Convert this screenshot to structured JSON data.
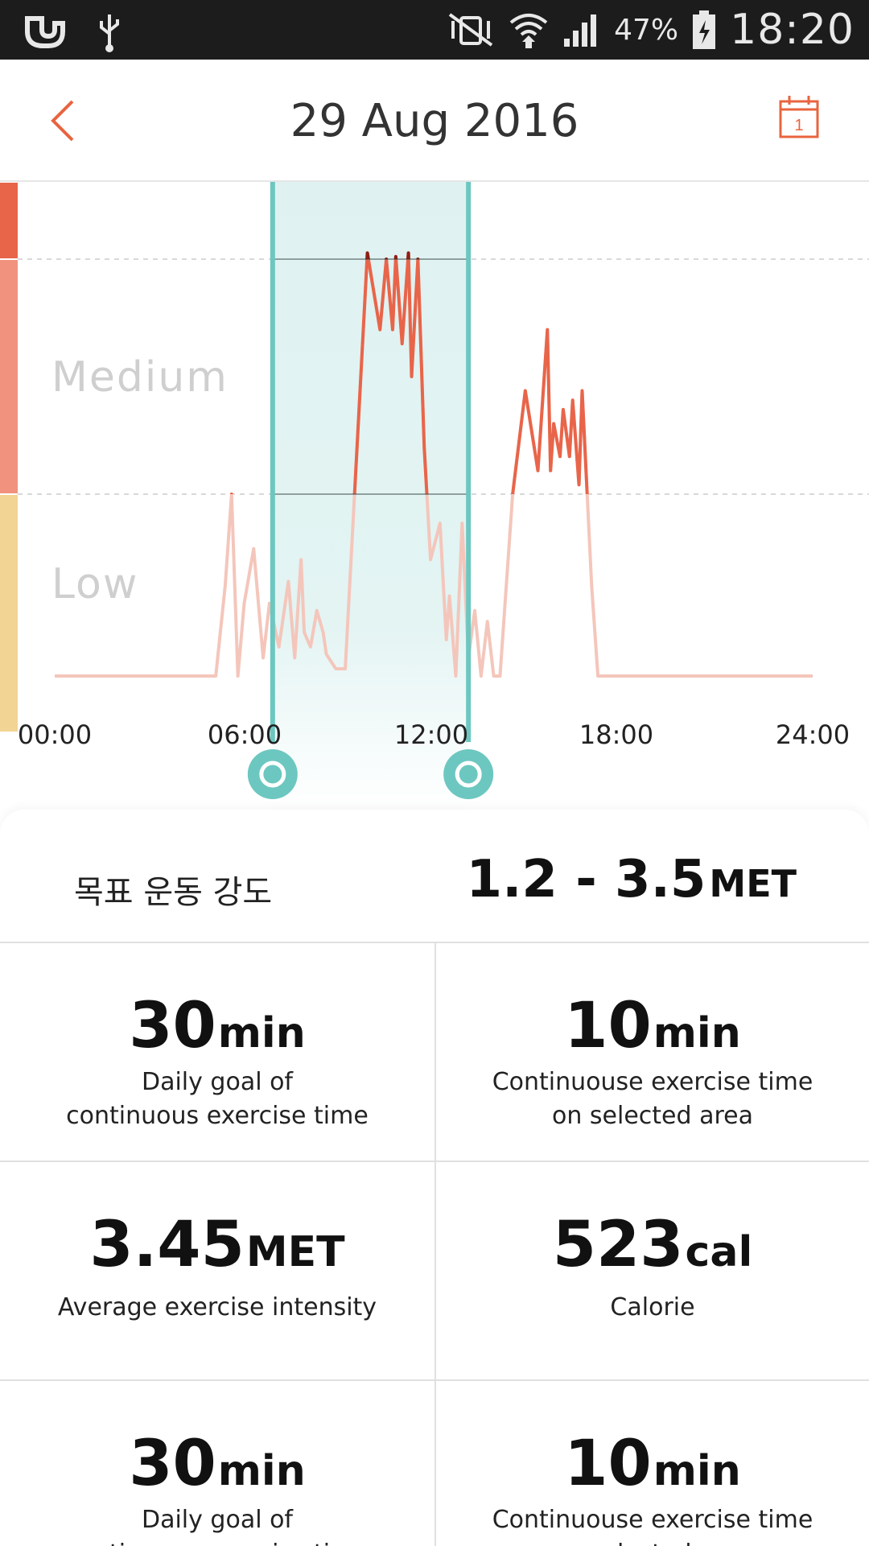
{
  "status_bar": {
    "battery_percent": "47%",
    "time": "18:20",
    "icons": [
      "u-plus-icon",
      "usb-icon",
      "vibrate-mute-icon",
      "wifi-icon",
      "signal-icon",
      "battery-charging-icon"
    ]
  },
  "header": {
    "title": "29 Aug 2016",
    "back_icon": "chevron-left-icon",
    "calendar_icon": "calendar-icon",
    "calendar_day": "1",
    "accent_color": "#e8643f"
  },
  "chart_data": {
    "type": "line",
    "zones": [
      {
        "label": "",
        "color": "#e8654a"
      },
      {
        "label": "Medium",
        "color": "#f0927e"
      },
      {
        "label": "Low",
        "color": "#f2d494"
      }
    ],
    "x_ticks": [
      "00:00",
      "06:00",
      "12:00",
      "18:00",
      "24:00"
    ],
    "xlim": [
      0,
      24
    ],
    "selection_hours": [
      6.9,
      13.1
    ],
    "selection_color": "#6cc7c0",
    "series": [
      {
        "line_color": "#e8654a",
        "x": [
          0,
          5.1,
          5.4,
          5.6,
          5.8,
          6.0,
          6.3,
          6.6,
          6.8,
          7.1,
          7.4,
          7.6,
          7.8,
          7.9,
          8.1,
          8.3,
          8.5,
          8.6,
          8.9,
          9.2,
          9.9,
          10.3,
          10.5,
          10.7,
          10.8,
          11.0,
          11.2,
          11.3,
          11.5,
          11.7,
          11.9,
          12.2,
          12.4,
          12.5,
          12.7,
          12.9,
          13.1,
          13.3,
          13.5,
          13.7,
          13.9,
          14.1,
          14.5,
          14.9,
          15.3,
          15.6,
          15.7,
          15.8,
          16.0,
          16.1,
          16.3,
          16.4,
          16.6,
          16.7,
          17.0,
          17.2,
          24
        ],
        "y": [
          0,
          0,
          0.25,
          0.5,
          0,
          0.2,
          0.35,
          0.05,
          0.2,
          0.08,
          0.26,
          0.05,
          0.32,
          0.12,
          0.08,
          0.18,
          0.12,
          0.06,
          0.02,
          0.02,
          1.05,
          0.85,
          1.0,
          0.85,
          1.02,
          0.82,
          1.05,
          0.75,
          1.0,
          0.6,
          0.32,
          0.42,
          0.1,
          0.22,
          0,
          0.42,
          0.05,
          0.18,
          0,
          0.15,
          0,
          0,
          0.5,
          0.72,
          0.55,
          0.85,
          0.55,
          0.65,
          0.58,
          0.68,
          0.58,
          0.7,
          0.52,
          0.72,
          0.25,
          0,
          0
        ]
      }
    ]
  },
  "stats": {
    "target_label": "목표 운동 강도",
    "target_value": "1.2 - 3.5",
    "target_unit": "MET",
    "cells": [
      {
        "value": "30",
        "unit": "min",
        "line1": "Daily goal of",
        "line2": "continuous exercise time"
      },
      {
        "value": "10",
        "unit": "min",
        "line1": "Continuouse exercise time",
        "line2": "on selected area"
      },
      {
        "value": "3.45",
        "unit": "MET",
        "line1": "Average exercise intensity",
        "line2": ""
      },
      {
        "value": "523",
        "unit": "cal",
        "line1": "Calorie",
        "line2": ""
      },
      {
        "value": "30",
        "unit": "min",
        "line1": "Daily goal of",
        "line2": "continuous exercise time"
      },
      {
        "value": "10",
        "unit": "min",
        "line1": "Continuouse exercise time",
        "line2": "on selected area"
      }
    ]
  }
}
